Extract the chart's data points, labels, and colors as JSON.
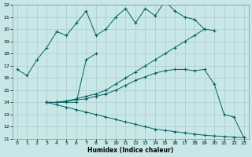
{
  "xlabel": "Humidex (Indice chaleur)",
  "bg_color": "#c8e8e8",
  "line_color": "#006060",
  "grid_color": "#b0c8c8",
  "xlim": [
    -0.5,
    23.5
  ],
  "ylim": [
    11,
    22
  ],
  "xticks": [
    0,
    1,
    2,
    3,
    4,
    5,
    6,
    7,
    8,
    9,
    10,
    11,
    12,
    13,
    14,
    15,
    16,
    17,
    18,
    19,
    20,
    21,
    22,
    23
  ],
  "yticks": [
    11,
    12,
    13,
    14,
    15,
    16,
    17,
    18,
    19,
    20,
    21,
    22
  ],
  "line1_x": [
    0,
    1,
    2,
    3,
    4,
    5,
    6,
    7,
    8,
    9,
    10,
    11,
    12,
    13,
    14,
    15,
    16,
    17,
    18,
    19,
    20
  ],
  "line1_y": [
    16.7,
    16.2,
    17.5,
    18.5,
    19.8,
    19.5,
    20.5,
    21.5,
    19.5,
    20.0,
    21.0,
    21.7,
    20.5,
    21.7,
    21.1,
    22.3,
    21.5,
    21.0,
    20.8,
    20.0,
    19.9
  ],
  "line2_x": [
    3,
    4,
    5,
    6,
    7,
    8,
    9,
    10,
    11,
    12,
    13,
    14,
    15,
    16,
    17,
    18,
    19
  ],
  "line2_y": [
    14.0,
    14.0,
    14.1,
    14.3,
    14.5,
    14.7,
    15.0,
    15.5,
    16.0,
    16.5,
    17.0,
    17.5,
    18.0,
    18.5,
    19.0,
    19.5,
    20.0
  ],
  "line3_x": [
    3,
    4,
    5,
    6,
    7,
    8
  ],
  "line3_y": [
    14.0,
    14.0,
    14.0,
    14.0,
    17.5,
    18.0
  ],
  "line4_x": [
    3,
    4,
    5,
    6,
    7,
    8,
    9,
    10,
    11,
    12,
    13,
    14,
    15,
    16,
    17,
    18,
    19,
    20,
    21,
    22,
    23
  ],
  "line4_y": [
    14.0,
    14.0,
    14.1,
    14.2,
    14.3,
    14.5,
    14.7,
    15.0,
    15.4,
    15.8,
    16.1,
    16.4,
    16.6,
    16.7,
    16.7,
    16.6,
    16.7,
    15.5,
    13.0,
    12.8,
    11.1
  ],
  "line5_x": [
    3,
    4,
    5,
    6,
    7,
    8,
    9,
    10,
    11,
    12,
    13,
    14,
    15,
    16,
    17,
    18,
    19,
    20,
    21,
    22,
    23
  ],
  "line5_y": [
    14.0,
    13.8,
    13.6,
    13.4,
    13.2,
    13.0,
    12.8,
    12.6,
    12.4,
    12.2,
    12.0,
    11.8,
    11.7,
    11.6,
    11.5,
    11.4,
    11.3,
    11.25,
    11.2,
    11.15,
    11.1
  ]
}
